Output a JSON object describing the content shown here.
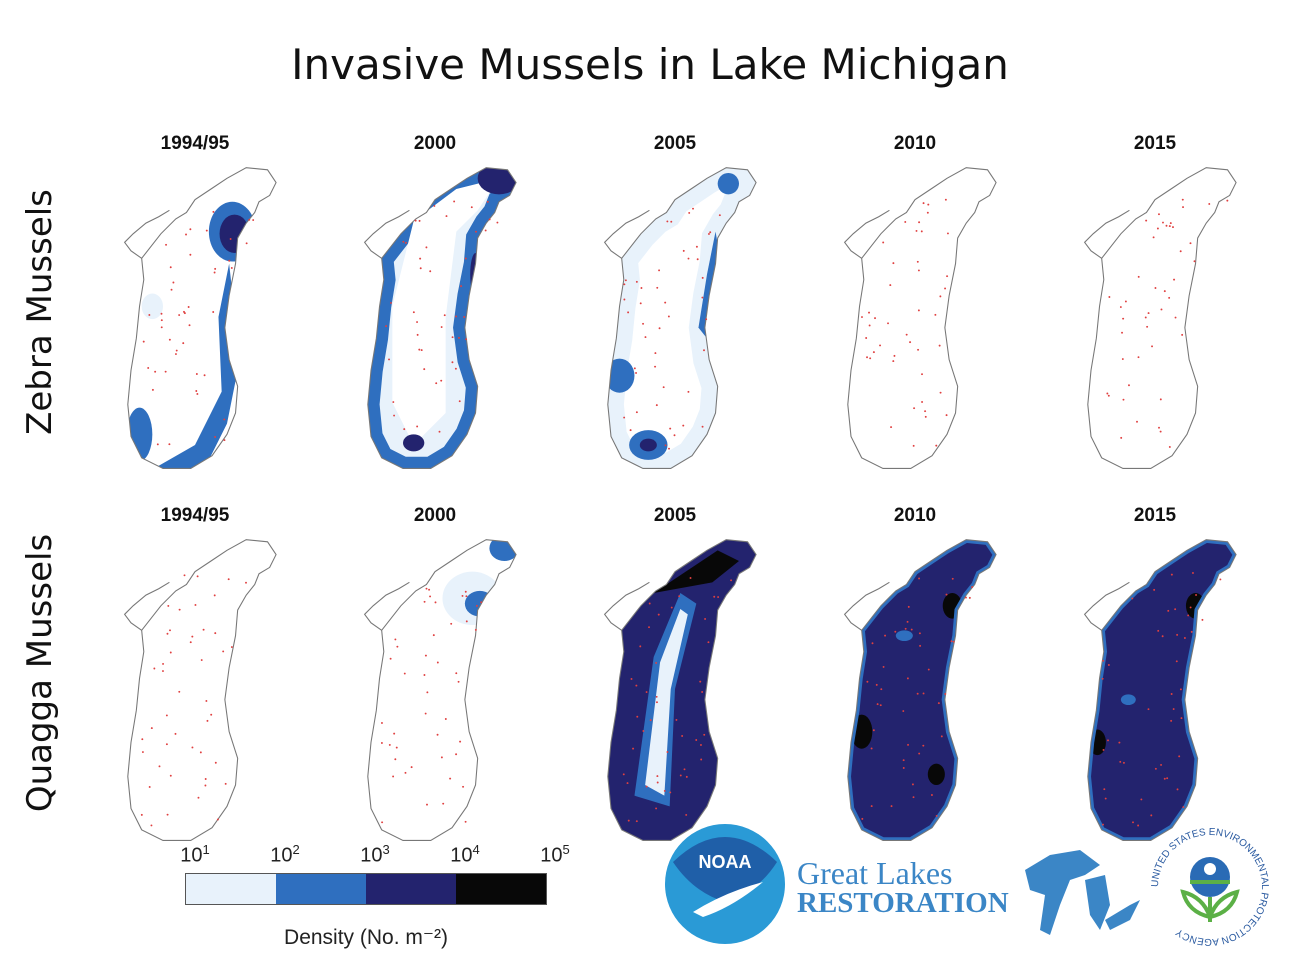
{
  "title": "Invasive Mussels in Lake Michigan",
  "rows": [
    {
      "label": "Zebra Mussels",
      "years": [
        "1994/95",
        "2000",
        "2005",
        "2010",
        "2015"
      ]
    },
    {
      "label": "Quagga Mussels",
      "years": [
        "1994/95",
        "2000",
        "2005",
        "2010",
        "2015"
      ]
    }
  ],
  "legend": {
    "ticks": [
      {
        "base": "10",
        "exp": "1"
      },
      {
        "base": "10",
        "exp": "2"
      },
      {
        "base": "10",
        "exp": "3"
      },
      {
        "base": "10",
        "exp": "4"
      },
      {
        "base": "10",
        "exp": "5"
      }
    ],
    "colors": [
      "#e8f2fb",
      "#2f6fbf",
      "#23236e",
      "#080808"
    ],
    "title": "Density (No. m⁻²)"
  },
  "logos": {
    "noaa": "NOAA",
    "glri_line1": "Great Lakes",
    "glri_line2": "RESTORATION",
    "epa": "UNITED STATES ENVIRONMENTAL PROTECTION AGENCY"
  }
}
